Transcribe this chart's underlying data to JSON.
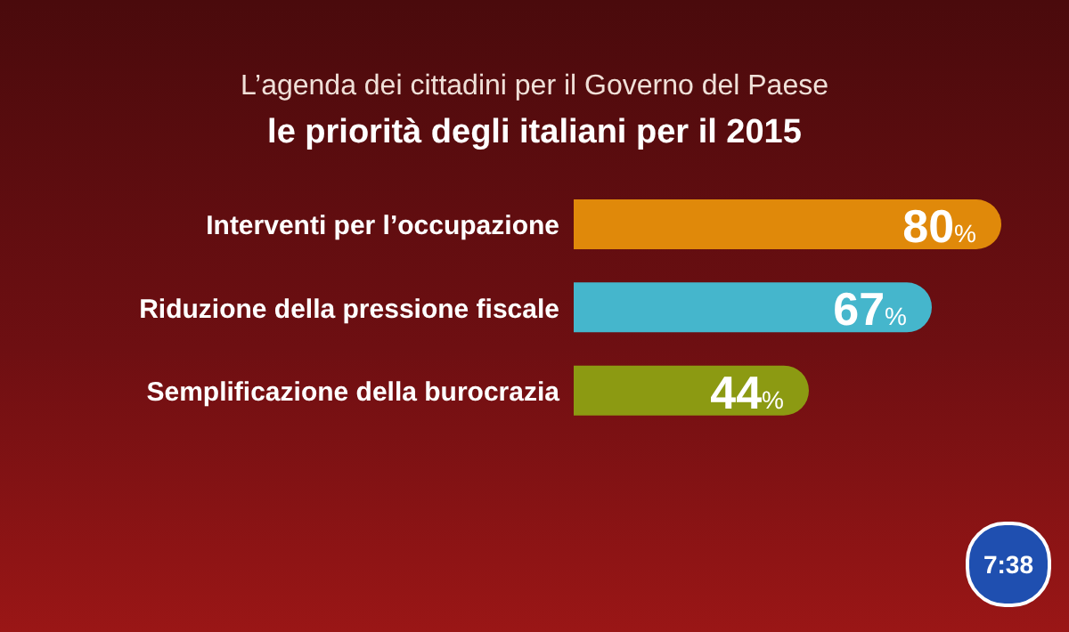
{
  "chart_data": {
    "type": "bar",
    "orientation": "horizontal",
    "title": "L’agenda dei cittadini per il Governo del Paese",
    "subtitle": "le priorità degli italiani per il 2015",
    "categories": [
      "Interventi per l’occupazione",
      "Riduzione della pressione fiscale",
      "Semplificazione della burocrazia"
    ],
    "values": [
      80,
      67,
      44
    ],
    "colors": [
      "#e0890a",
      "#45b6cc",
      "#8c9a12"
    ],
    "value_labels": [
      "80%",
      "67%",
      "44%"
    ],
    "annotations": [
      "7:38"
    ]
  }
}
